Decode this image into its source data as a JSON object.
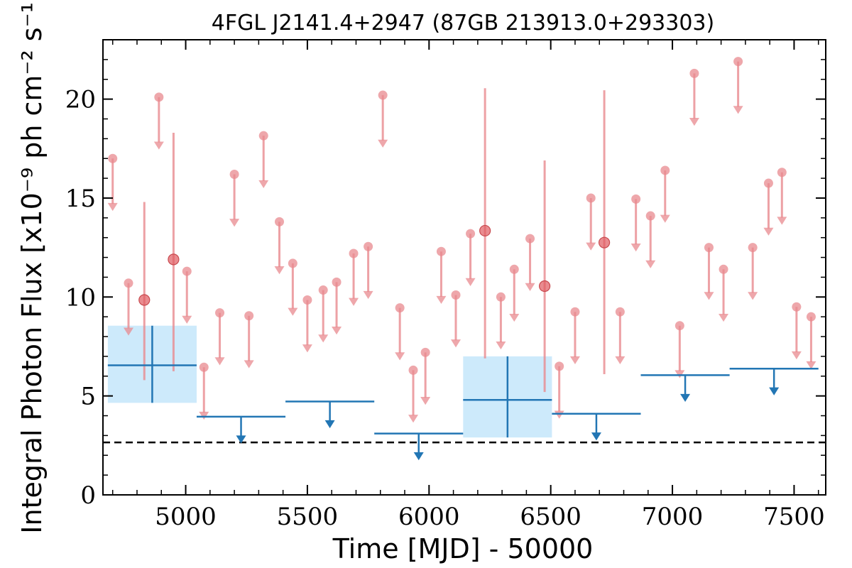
{
  "chart_data": {
    "type": "scatter",
    "title": "4FGL J2141.4+2947 (87GB 213913.0+293303)",
    "xlabel": "Time [MJD] - 50000",
    "ylabel": "Integral Photon Flux [x10⁻⁹ ph cm⁻² s⁻¹]",
    "xlim": [
      4660,
      7630
    ],
    "ylim": [
      0,
      23
    ],
    "xticks": [
      5000,
      5500,
      6000,
      6500,
      7000,
      7500
    ],
    "yticks": [
      0,
      5,
      10,
      15,
      20
    ],
    "reference_line": {
      "y": 2.65,
      "style": "dashed",
      "color": "#000000"
    },
    "series": [
      {
        "type": "short-bin-upper-limits",
        "color": "#e88a8f",
        "points": [
          {
            "x": 4700,
            "y": 17.0
          },
          {
            "x": 4765,
            "y": 10.7
          },
          {
            "x": 4890,
            "y": 20.1
          },
          {
            "x": 5005,
            "y": 11.3
          },
          {
            "x": 5075,
            "y": 6.45
          },
          {
            "x": 5140,
            "y": 9.2
          },
          {
            "x": 5200,
            "y": 16.2
          },
          {
            "x": 5260,
            "y": 9.05
          },
          {
            "x": 5320,
            "y": 18.15
          },
          {
            "x": 5385,
            "y": 13.8
          },
          {
            "x": 5440,
            "y": 11.7
          },
          {
            "x": 5500,
            "y": 9.85
          },
          {
            "x": 5565,
            "y": 10.35
          },
          {
            "x": 5620,
            "y": 10.75
          },
          {
            "x": 5690,
            "y": 12.2
          },
          {
            "x": 5750,
            "y": 12.55
          },
          {
            "x": 5810,
            "y": 20.2
          },
          {
            "x": 5880,
            "y": 9.45
          },
          {
            "x": 5935,
            "y": 6.3
          },
          {
            "x": 5985,
            "y": 7.2
          },
          {
            "x": 6050,
            "y": 12.3
          },
          {
            "x": 6110,
            "y": 10.1
          },
          {
            "x": 6170,
            "y": 13.2
          },
          {
            "x": 6295,
            "y": 10.0
          },
          {
            "x": 6350,
            "y": 11.4
          },
          {
            "x": 6415,
            "y": 12.95
          },
          {
            "x": 6535,
            "y": 6.5
          },
          {
            "x": 6600,
            "y": 9.25
          },
          {
            "x": 6665,
            "y": 15.0
          },
          {
            "x": 6785,
            "y": 9.25
          },
          {
            "x": 6850,
            "y": 14.95
          },
          {
            "x": 6910,
            "y": 14.1
          },
          {
            "x": 6970,
            "y": 16.4
          },
          {
            "x": 7030,
            "y": 8.55
          },
          {
            "x": 7090,
            "y": 21.3
          },
          {
            "x": 7150,
            "y": 12.5
          },
          {
            "x": 7210,
            "y": 11.4
          },
          {
            "x": 7270,
            "y": 21.9
          },
          {
            "x": 7330,
            "y": 12.5
          },
          {
            "x": 7395,
            "y": 15.75
          },
          {
            "x": 7450,
            "y": 16.3
          },
          {
            "x": 7510,
            "y": 9.5
          },
          {
            "x": 7570,
            "y": 9.0
          }
        ]
      },
      {
        "type": "short-bin-detections",
        "color": "#e05a5f",
        "points": [
          {
            "x": 4830,
            "y": 9.85,
            "ylow": 5.8,
            "yhigh": 14.8
          },
          {
            "x": 4950,
            "y": 11.9,
            "ylow": 6.25,
            "yhigh": 18.3
          },
          {
            "x": 6230,
            "y": 13.35,
            "ylow": 6.9,
            "yhigh": 20.55
          },
          {
            "x": 6475,
            "y": 10.55,
            "ylow": 5.2,
            "yhigh": 16.9
          },
          {
            "x": 6720,
            "y": 12.75,
            "ylow": 6.1,
            "yhigh": 20.45
          }
        ]
      },
      {
        "type": "long-bin-upper-limits",
        "color": "#2276b4",
        "bins": [
          {
            "x0": 5045,
            "x1": 5410,
            "y": 3.95
          },
          {
            "x0": 5410,
            "x1": 5775,
            "y": 4.72
          },
          {
            "x0": 5775,
            "x1": 6140,
            "y": 3.1
          },
          {
            "x0": 6505,
            "x1": 6870,
            "y": 4.1
          },
          {
            "x0": 6870,
            "x1": 7235,
            "y": 6.05
          },
          {
            "x0": 7235,
            "x1": 7600,
            "y": 6.38
          }
        ]
      },
      {
        "type": "long-bin-detections",
        "color": "#2276b4",
        "fill": "#cdeafb",
        "bins": [
          {
            "x0": 4680,
            "x1": 5045,
            "y": 6.55,
            "ylow": 4.65,
            "yhigh": 8.55
          },
          {
            "x0": 6140,
            "x1": 6505,
            "y": 4.8,
            "ylow": 2.9,
            "yhigh": 7.0
          }
        ]
      }
    ]
  }
}
